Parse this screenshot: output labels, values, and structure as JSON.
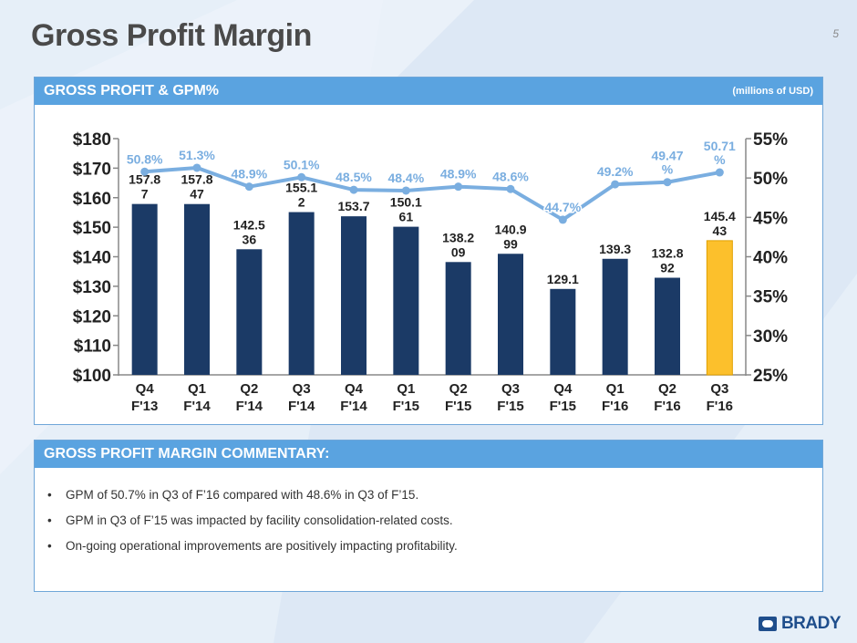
{
  "page": {
    "title": "Gross Profit Margin",
    "number": "5"
  },
  "chart_panel": {
    "title": "GROSS PROFIT & GPM%",
    "units": "(millions of USD)"
  },
  "commentary": {
    "title": "GROSS PROFIT MARGIN COMMENTARY:",
    "bullets": [
      "GPM of 50.7% in Q3 of F’16 compared with 48.6% in Q3 of F’15.",
      "GPM in Q3 of F’15 was impacted by facility consolidation-related costs.",
      "On-going operational improvements are positively impacting profitability."
    ]
  },
  "logo": {
    "text": "BRADY"
  },
  "colors": {
    "bar": "#1b3a66",
    "bar_highlight": "#fcc02c",
    "line": "#7aaee0",
    "header": "#5aa3e0"
  },
  "chart_data": {
    "type": "bar+line",
    "categories": [
      [
        "Q4",
        "F'13"
      ],
      [
        "Q1",
        "F'14"
      ],
      [
        "Q2",
        "F'14"
      ],
      [
        "Q3",
        "F'14"
      ],
      [
        "Q4",
        "F'14"
      ],
      [
        "Q1",
        "F'15"
      ],
      [
        "Q2",
        "F'15"
      ],
      [
        "Q3",
        "F'15"
      ],
      [
        "Q4",
        "F'15"
      ],
      [
        "Q1",
        "F'16"
      ],
      [
        "Q2",
        "F'16"
      ],
      [
        "Q3",
        "F'16"
      ]
    ],
    "series": [
      {
        "name": "Gross Profit",
        "kind": "bar",
        "axis": "left",
        "values": [
          157.87,
          157.847,
          142.536,
          155.12,
          153.7,
          150.161,
          138.209,
          140.999,
          129.1,
          139.3,
          132.892,
          145.443
        ],
        "labels": [
          [
            "157.8",
            "7"
          ],
          [
            "157.8",
            "47"
          ],
          [
            "142.5",
            "36"
          ],
          [
            "155.1",
            "2"
          ],
          [
            "153.7"
          ],
          [
            "150.1",
            "61"
          ],
          [
            "138.2",
            "09"
          ],
          [
            "140.9",
            "99"
          ],
          [
            "129.1"
          ],
          [
            "139.3"
          ],
          [
            "132.8",
            "92"
          ],
          [
            "145.4",
            "43"
          ]
        ],
        "highlight_index": 11
      },
      {
        "name": "GPM%",
        "kind": "line",
        "axis": "right",
        "values": [
          50.8,
          51.3,
          48.9,
          50.1,
          48.5,
          48.4,
          48.9,
          48.6,
          44.7,
          49.2,
          49.47,
          50.71
        ],
        "labels": [
          [
            "50.8%"
          ],
          [
            "51.3%"
          ],
          [
            "48.9%"
          ],
          [
            "50.1%"
          ],
          [
            "48.5%"
          ],
          [
            "48.4%"
          ],
          [
            "48.9%"
          ],
          [
            "48.6%"
          ],
          [
            "44.7%"
          ],
          [
            "49.2%"
          ],
          [
            "49.47",
            "%"
          ],
          [
            "50.71",
            "%"
          ]
        ]
      }
    ],
    "left_axis": {
      "min": 100,
      "max": 180,
      "ticks": [
        100,
        110,
        120,
        130,
        140,
        150,
        160,
        170,
        180
      ],
      "tick_labels": [
        "$100",
        "$110",
        "$120",
        "$130",
        "$140",
        "$150",
        "$160",
        "$170",
        "$180"
      ]
    },
    "right_axis": {
      "min": 25,
      "max": 55,
      "ticks": [
        25,
        30,
        35,
        40,
        45,
        50,
        55
      ],
      "tick_labels": [
        "25%",
        "30%",
        "35%",
        "40%",
        "45%",
        "50%",
        "55%"
      ]
    }
  }
}
